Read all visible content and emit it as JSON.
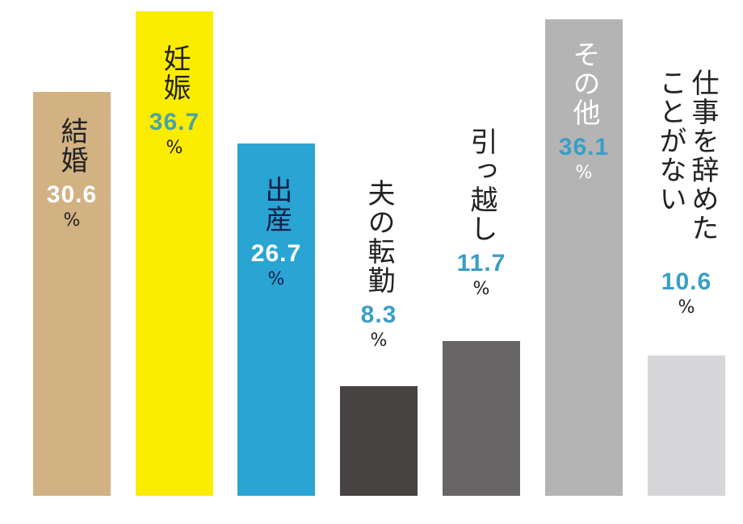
{
  "chart_data": {
    "type": "bar",
    "title": "",
    "xlabel": "",
    "ylabel": "",
    "unit": "%",
    "ylim": [
      0,
      37
    ],
    "grid": false,
    "categories": [
      "結婚",
      "妊娠",
      "出産",
      "夫の転勤",
      "引っ越し",
      "その他",
      "仕事を辞めたことがない"
    ],
    "values": [
      30.6,
      36.7,
      26.7,
      8.3,
      11.7,
      36.1,
      10.6
    ],
    "value_labels": [
      "30.6",
      "36.7",
      "26.7",
      "8.3",
      "11.7",
      "36.1",
      "10.6"
    ],
    "colors": [
      "#d2b283",
      "#fcec00",
      "#2aa4d2",
      "#464342",
      "#676566",
      "#b4b4b4",
      "#d6d6d8"
    ],
    "label_colors": [
      "#222222",
      "#222222",
      "#13204a",
      "#222222",
      "#222222",
      "#ffffff",
      "#222222"
    ],
    "value_colors": [
      "#ffffff",
      "#4aa3a0",
      "#ffffff",
      "#3a9ec4",
      "#3a9ec4",
      "#3a9ec4",
      "#3a9ec4"
    ],
    "pct_colors": [
      "#222222",
      "#222222",
      "#13204a",
      "#222222",
      "#222222",
      "#ffffff",
      "#222222"
    ]
  }
}
